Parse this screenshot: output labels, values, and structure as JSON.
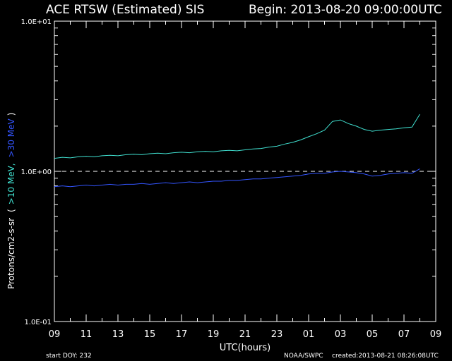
{
  "chart_data": {
    "type": "line",
    "title": "ACE RTSW (Estimated) SIS",
    "subtitle": "Begin: 2013-08-20 09:00:00UTC",
    "x_label": "UTC(hours)",
    "y_label": "Protons/cm2-s-sr",
    "footer_left": "start DOY:  232",
    "footer_center": "NOAA/SWPC",
    "footer_right": "created:2013-08-21 08:26:08UTC",
    "log_y": true,
    "reference_line": 1,
    "xlim": [
      0,
      24
    ],
    "xticks": [
      {
        "value": 0,
        "label": "09"
      },
      {
        "value": 2,
        "label": "11"
      },
      {
        "value": 4,
        "label": "13"
      },
      {
        "value": 6,
        "label": "15"
      },
      {
        "value": 8,
        "label": "17"
      },
      {
        "value": 10,
        "label": "19"
      },
      {
        "value": 12,
        "label": "21"
      },
      {
        "value": 14,
        "label": "23"
      },
      {
        "value": 16,
        "label": "01"
      },
      {
        "value": 18,
        "label": "03"
      },
      {
        "value": 20,
        "label": "05"
      },
      {
        "value": 22,
        "label": "07"
      },
      {
        "value": 24,
        "label": "09"
      }
    ],
    "ylim": [
      0.1,
      10
    ],
    "yticks": [
      {
        "value": 0.1,
        "label": "1.0E-01"
      },
      {
        "value": 1,
        "label": "1.0E+00"
      },
      {
        "value": 10,
        "label": "1.0E+01"
      }
    ],
    "x": [
      0,
      0.5,
      1,
      1.5,
      2,
      2.5,
      3,
      3.5,
      4,
      4.5,
      5,
      5.5,
      6,
      6.5,
      7,
      7.5,
      8,
      8.5,
      9,
      9.5,
      10,
      10.5,
      11,
      11.5,
      12,
      12.5,
      13,
      13.5,
      14,
      14.5,
      15,
      15.5,
      16,
      16.5,
      17,
      17.5,
      18,
      18.5,
      19,
      19.5,
      20,
      20.5,
      21,
      21.5,
      22,
      22.5,
      23
    ],
    "series": [
      {
        "name": ">10 MeV",
        "color": "#40e0d0",
        "values": [
          1.22,
          1.24,
          1.23,
          1.25,
          1.26,
          1.25,
          1.27,
          1.28,
          1.27,
          1.29,
          1.3,
          1.29,
          1.31,
          1.32,
          1.31,
          1.33,
          1.34,
          1.33,
          1.35,
          1.36,
          1.35,
          1.37,
          1.38,
          1.37,
          1.39,
          1.41,
          1.42,
          1.45,
          1.47,
          1.52,
          1.56,
          1.62,
          1.7,
          1.78,
          1.88,
          2.15,
          2.2,
          2.08,
          2.0,
          1.9,
          1.85,
          1.88,
          1.9,
          1.92,
          1.95,
          1.97,
          2.4
        ]
      },
      {
        "name": ">30 MeV",
        "color": "#3355ff",
        "values": [
          0.79,
          0.8,
          0.79,
          0.8,
          0.81,
          0.8,
          0.81,
          0.82,
          0.81,
          0.82,
          0.82,
          0.83,
          0.82,
          0.83,
          0.84,
          0.83,
          0.84,
          0.85,
          0.84,
          0.85,
          0.86,
          0.86,
          0.87,
          0.87,
          0.88,
          0.89,
          0.89,
          0.9,
          0.91,
          0.92,
          0.93,
          0.94,
          0.96,
          0.97,
          0.97,
          0.99,
          1.0,
          0.99,
          0.98,
          0.96,
          0.93,
          0.94,
          0.96,
          0.97,
          0.98,
          0.97,
          1.04
        ]
      }
    ]
  }
}
